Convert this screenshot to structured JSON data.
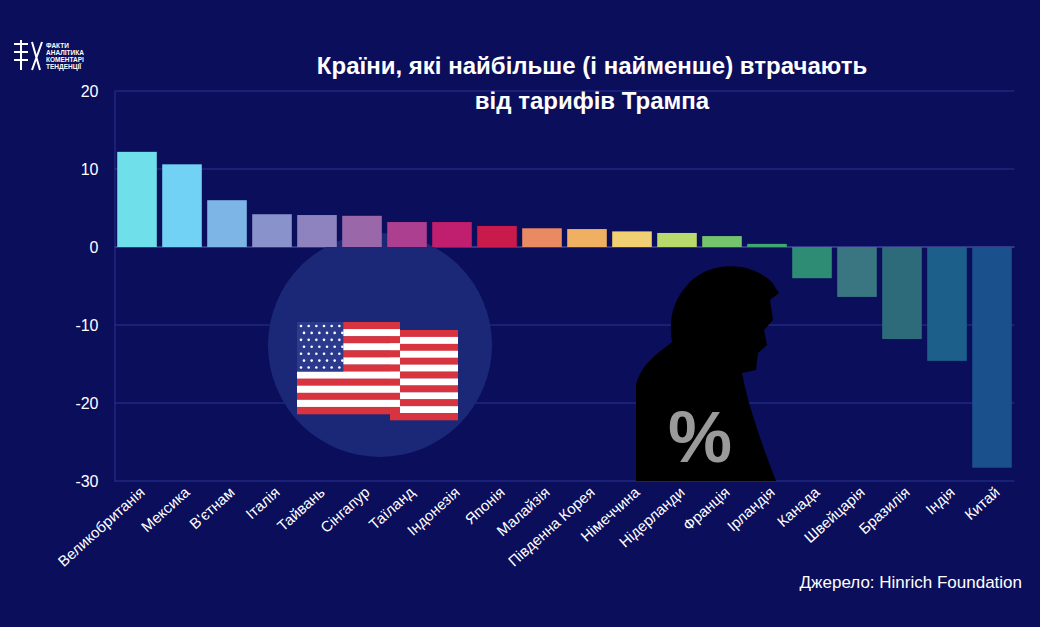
{
  "chart_data": {
    "type": "bar",
    "title": "Країни, які найбільше (і найменше) втрачають від тарифів Трампа",
    "categories": [
      "Великобританія",
      "Мексика",
      "В'єтнам",
      "Італія",
      "Тайвань",
      "Сінгапур",
      "Таїланд",
      "Індонезія",
      "Японія",
      "Малайзія",
      "Південна Корея",
      "Німеччина",
      "Нідерланди",
      "Франція",
      "Ірландія",
      "Канада",
      "Швейцарія",
      "Бразилія",
      "Індія",
      "Китай"
    ],
    "values": [
      12.2,
      10.6,
      6.0,
      4.2,
      4.1,
      4.0,
      3.2,
      3.2,
      2.7,
      2.4,
      2.3,
      2.0,
      1.8,
      1.4,
      0.4,
      -4.0,
      -6.4,
      -11.8,
      -14.6,
      -28.3
    ],
    "colors": [
      "#6fe0ea",
      "#72d2f6",
      "#7db6e6",
      "#8a92cc",
      "#8e83bf",
      "#9a68a8",
      "#ac3f8f",
      "#c01e6e",
      "#c81b4b",
      "#e98a62",
      "#f0b062",
      "#f0d072",
      "#b8da6c",
      "#74c46e",
      "#3faa70",
      "#2e8c74",
      "#3a7682",
      "#2d6b7a",
      "#1c5f8a",
      "#1a508c"
    ],
    "ylim": [
      -30,
      20
    ],
    "yticks": [
      -30,
      -20,
      -10,
      0,
      10,
      20
    ],
    "grid": true,
    "annotations": [
      "ФАКТИ",
      "АНАЛІТИКА",
      "КОМЕНТАРІ",
      "ТЕНДЕНЦІЇ",
      "%",
      "Джерело: Hinrich Foundation"
    ]
  }
}
